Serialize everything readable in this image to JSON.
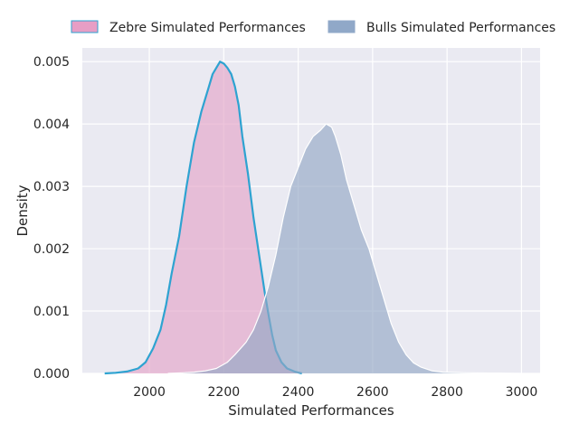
{
  "chart_data": {
    "type": "area",
    "xlabel": "Simulated Performances",
    "ylabel": "Density",
    "xlim": [
      1820,
      3050
    ],
    "ylim": [
      0,
      0.00522
    ],
    "x_ticks": [
      2000,
      2200,
      2400,
      2600,
      2800,
      3000
    ],
    "x_tick_labels": [
      "2000",
      "2200",
      "2400",
      "2600",
      "2800",
      "3000"
    ],
    "y_ticks": [
      0,
      0.001,
      0.002,
      0.003,
      0.004,
      0.005
    ],
    "y_tick_labels": [
      "0.000",
      "0.001",
      "0.002",
      "0.003",
      "0.004",
      "0.005"
    ],
    "grid": true,
    "legend_position": "top (outside, above plot)",
    "series": [
      {
        "name": "Zebre Simulated Performances",
        "fill_color": "#e4a4c8",
        "fill_opacity": 0.65,
        "line_color": "#2ea3d1",
        "legend_color": "#e79ec5",
        "points": [
          [
            1880,
            0
          ],
          [
            1910,
            1e-05
          ],
          [
            1940,
            3e-05
          ],
          [
            1970,
            8e-05
          ],
          [
            1990,
            0.00018
          ],
          [
            2010,
            0.0004
          ],
          [
            2030,
            0.0007
          ],
          [
            2045,
            0.0011
          ],
          [
            2060,
            0.0016
          ],
          [
            2080,
            0.0022
          ],
          [
            2100,
            0.003
          ],
          [
            2120,
            0.0037
          ],
          [
            2140,
            0.0042
          ],
          [
            2160,
            0.0046
          ],
          [
            2170,
            0.0048
          ],
          [
            2180,
            0.0049
          ],
          [
            2190,
            0.005
          ],
          [
            2200,
            0.00497
          ],
          [
            2210,
            0.0049
          ],
          [
            2220,
            0.0048
          ],
          [
            2230,
            0.0046
          ],
          [
            2240,
            0.0043
          ],
          [
            2250,
            0.0038
          ],
          [
            2265,
            0.0032
          ],
          [
            2280,
            0.0025
          ],
          [
            2295,
            0.0019
          ],
          [
            2310,
            0.0013
          ],
          [
            2320,
            0.00095
          ],
          [
            2330,
            0.00062
          ],
          [
            2340,
            0.00037
          ],
          [
            2355,
            0.00018
          ],
          [
            2370,
            8e-05
          ],
          [
            2390,
            3e-05
          ],
          [
            2410,
            0
          ]
        ]
      },
      {
        "name": "Bulls Simulated Performances",
        "fill_color": "#94a8c4",
        "fill_opacity": 0.65,
        "line_color": "#ffffff",
        "legend_color": "#90a8c8",
        "points": [
          [
            2050,
            0
          ],
          [
            2090,
            1e-05
          ],
          [
            2120,
            2e-05
          ],
          [
            2150,
            4e-05
          ],
          [
            2180,
            8e-05
          ],
          [
            2210,
            0.00018
          ],
          [
            2230,
            0.0003
          ],
          [
            2260,
            0.0005
          ],
          [
            2280,
            0.0007
          ],
          [
            2300,
            0.001
          ],
          [
            2320,
            0.0014
          ],
          [
            2340,
            0.0019
          ],
          [
            2360,
            0.0025
          ],
          [
            2380,
            0.003
          ],
          [
            2400,
            0.0033
          ],
          [
            2420,
            0.0036
          ],
          [
            2440,
            0.0038
          ],
          [
            2460,
            0.0039
          ],
          [
            2475,
            0.004
          ],
          [
            2490,
            0.00395
          ],
          [
            2500,
            0.0038
          ],
          [
            2515,
            0.0035
          ],
          [
            2530,
            0.0031
          ],
          [
            2550,
            0.0027
          ],
          [
            2570,
            0.0023
          ],
          [
            2590,
            0.002
          ],
          [
            2610,
            0.0016
          ],
          [
            2630,
            0.0012
          ],
          [
            2650,
            0.0008
          ],
          [
            2670,
            0.0005
          ],
          [
            2690,
            0.0003
          ],
          [
            2710,
            0.00017
          ],
          [
            2730,
            0.0001
          ],
          [
            2760,
            4e-05
          ],
          [
            2790,
            2e-05
          ],
          [
            2850,
            1e-05
          ],
          [
            2950,
            5e-06
          ],
          [
            3000,
            0
          ]
        ]
      }
    ]
  }
}
